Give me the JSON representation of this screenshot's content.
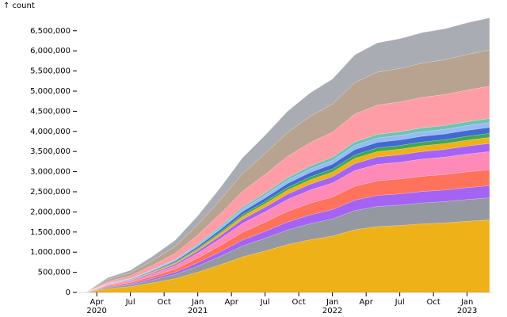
{
  "chart_data": {
    "type": "stacked-area",
    "y_label": "↑ count",
    "x": [
      "2020-03",
      "2020-05",
      "2020-07",
      "2020-09",
      "2020-11",
      "2021-01",
      "2021-03",
      "2021-05",
      "2021-07",
      "2021-09",
      "2021-11",
      "2022-01",
      "2022-03",
      "2022-05",
      "2022-07",
      "2022-09",
      "2022-11",
      "2023-01",
      "2023-03"
    ],
    "xlim": [
      "2020-03",
      "2023-03"
    ],
    "xticks": [
      {
        "value": "2020-04",
        "label": "Apr\n2020"
      },
      {
        "value": "2020-07",
        "label": "Jul"
      },
      {
        "value": "2020-10",
        "label": "Oct"
      },
      {
        "value": "2021-01",
        "label": "Jan\n2021"
      },
      {
        "value": "2021-04",
        "label": "Apr"
      },
      {
        "value": "2021-07",
        "label": "Jul"
      },
      {
        "value": "2021-10",
        "label": "Oct"
      },
      {
        "value": "2022-01",
        "label": "Jan\n2022"
      },
      {
        "value": "2022-04",
        "label": "Apr"
      },
      {
        "value": "2022-07",
        "label": "Jul"
      },
      {
        "value": "2022-10",
        "label": "Oct"
      },
      {
        "value": "2023-01",
        "label": "Jan\n2023"
      }
    ],
    "ylim": [
      0,
      6850000
    ],
    "yticks": [
      0,
      {
        "value": 500000,
        "label": "500,000"
      },
      {
        "value": 1000000,
        "label": "1,000,000"
      },
      {
        "value": 1500000,
        "label": "1,500,000"
      },
      {
        "value": 2000000,
        "label": "2,000,000"
      },
      {
        "value": 2500000,
        "label": "2,500,000"
      },
      {
        "value": 3000000,
        "label": "3,000,000"
      },
      {
        "value": 3500000,
        "label": "3,500,000"
      },
      {
        "value": 4000000,
        "label": "4,000,000"
      },
      {
        "value": 4500000,
        "label": "4,500,000"
      },
      {
        "value": 5000000,
        "label": "5,000,000"
      },
      {
        "value": 5500000,
        "label": "5,500,000"
      },
      {
        "value": 6000000,
        "label": "6,000,000"
      },
      {
        "value": 6500000,
        "label": "6,500,000"
      }
    ],
    "series": [
      {
        "color": "#efb118",
        "values": [
          0,
          97000,
          146000,
          238000,
          342000,
          502000,
          686000,
          884000,
          1030000,
          1188000,
          1307000,
          1399000,
          1557000,
          1636000,
          1663000,
          1703000,
          1728000,
          1768000,
          1800000
        ]
      },
      {
        "color": "#9498a0",
        "values": [
          0,
          30000,
          45000,
          73000,
          105000,
          153000,
          210000,
          270000,
          315000,
          363000,
          399000,
          427000,
          476000,
          500000,
          508000,
          520000,
          528000,
          540000,
          550000
        ]
      },
      {
        "color": "#a463f2",
        "values": [
          0,
          16000,
          24000,
          40000,
          57000,
          84000,
          114000,
          147000,
          172000,
          198000,
          218000,
          233000,
          260000,
          273000,
          277000,
          284000,
          288000,
          295000,
          300000
        ]
      },
      {
        "color": "#ff725c",
        "values": [
          0,
          22000,
          32000,
          53000,
          76000,
          112000,
          152000,
          196000,
          229000,
          264000,
          290000,
          311000,
          346000,
          364000,
          370000,
          378000,
          384000,
          393000,
          400000
        ]
      },
      {
        "color": "#ff8ab7",
        "values": [
          0,
          24000,
          36000,
          59000,
          86000,
          126000,
          171000,
          221000,
          257000,
          297000,
          327000,
          350000,
          389000,
          409000,
          416000,
          426000,
          432000,
          442000,
          450000
        ]
      },
      {
        "color": "#a463f2",
        "values": [
          0,
          11000,
          16000,
          26000,
          38000,
          56000,
          76000,
          98000,
          114000,
          132000,
          145000,
          155000,
          173000,
          182000,
          185000,
          189000,
          192000,
          196000,
          200000
        ]
      },
      {
        "color": "#efb118",
        "values": [
          0,
          8000,
          12000,
          20000,
          29000,
          42000,
          57000,
          74000,
          86000,
          99000,
          109000,
          117000,
          130000,
          136000,
          139000,
          142000,
          144000,
          147000,
          150000
        ]
      },
      {
        "color": "#3ca951",
        "values": [
          0,
          5000,
          8000,
          13000,
          19000,
          28000,
          38000,
          49000,
          57000,
          66000,
          73000,
          78000,
          87000,
          91000,
          92000,
          95000,
          96000,
          98000,
          100000
        ]
      },
      {
        "color": "#4269d0",
        "values": [
          0,
          8000,
          12000,
          20000,
          29000,
          42000,
          57000,
          74000,
          86000,
          99000,
          109000,
          117000,
          130000,
          136000,
          139000,
          142000,
          144000,
          147000,
          150000
        ]
      },
      {
        "color": "#97bbf5",
        "values": [
          0,
          6000,
          10000,
          16000,
          23000,
          33000,
          46000,
          59000,
          69000,
          79000,
          87000,
          93000,
          104000,
          109000,
          111000,
          114000,
          115000,
          118000,
          120000
        ]
      },
      {
        "color": "#6cc5b0",
        "values": [
          0,
          5000,
          8000,
          13000,
          19000,
          28000,
          38000,
          49000,
          57000,
          66000,
          73000,
          78000,
          87000,
          91000,
          92000,
          95000,
          96000,
          98000,
          100000
        ]
      },
      {
        "color": "#ff9da7",
        "values": [
          0,
          43000,
          65000,
          106000,
          152000,
          223000,
          305000,
          393000,
          458000,
          528000,
          581000,
          622000,
          692000,
          727000,
          739000,
          757000,
          768000,
          786000,
          800000
        ]
      },
      {
        "color": "#b7a38f",
        "values": [
          0,
          49000,
          73000,
          119000,
          171000,
          251000,
          343000,
          442000,
          515000,
          594000,
          653000,
          699000,
          779000,
          818000,
          832000,
          851000,
          864000,
          884000,
          900000
        ]
      },
      {
        "color": "#a9adb3",
        "values": [
          0,
          43000,
          65000,
          106000,
          152000,
          223000,
          305000,
          393000,
          458000,
          528000,
          581000,
          622000,
          692000,
          727000,
          739000,
          757000,
          768000,
          786000,
          800000
        ]
      }
    ]
  }
}
